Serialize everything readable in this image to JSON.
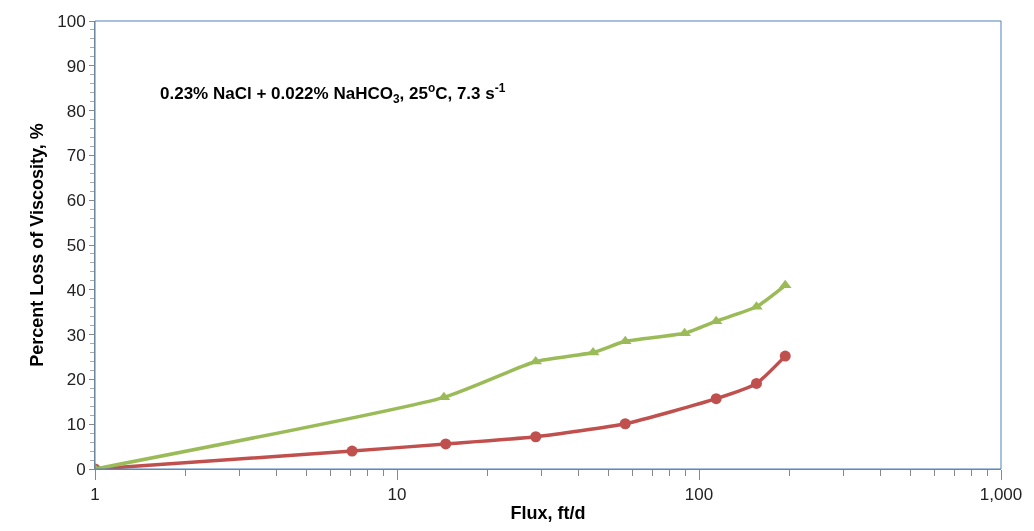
{
  "chart_data": {
    "type": "line",
    "xlabel": "Flux, ft/d",
    "ylabel": "Percent Loss of Viscosity, %",
    "annotations": [
      "0.23% NaCl + 0.022% NaHCO$_{3}$, 25$^{o}$C, 7.3 s$^{-1}$"
    ],
    "log": "x",
    "xlim": [
      1,
      1000
    ],
    "xticks": [
      1,
      10,
      100,
      {
        "value": 1000,
        "label": "1,000"
      }
    ],
    "ylim": [
      0,
      100
    ],
    "yticks": [
      0,
      10,
      20,
      30,
      40,
      50,
      60,
      70,
      80,
      90,
      100
    ],
    "series": [
      {
        "color": "#c0504d",
        "marker": "circle",
        "x": [
          1,
          7.1,
          14.5,
          28.8,
          57,
          114,
          155,
          193
        ],
        "values": [
          0,
          4.0,
          5.6,
          7.2,
          10.1,
          15.7,
          19.1,
          25.2
        ]
      },
      {
        "color": "#9bbb59",
        "marker": "triangle",
        "x": [
          1,
          14.3,
          28.8,
          44.6,
          57,
          89.6,
          114,
          155,
          193
        ],
        "values": [
          0,
          16.0,
          24.0,
          26.0,
          28.5,
          30.3,
          33.0,
          36.2,
          41.0
        ]
      }
    ]
  }
}
